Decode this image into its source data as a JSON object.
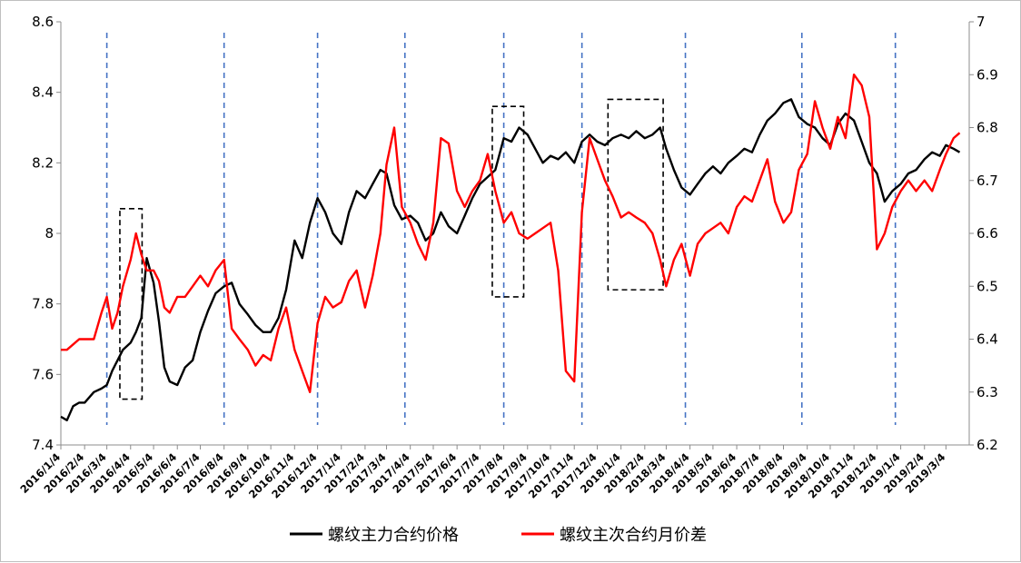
{
  "chart_data": {
    "type": "line",
    "title": "",
    "xlabel": "",
    "ylabel": "",
    "x_tick_labels": [
      "2016/1/4",
      "2016/2/4",
      "2016/3/4",
      "2016/4/4",
      "2016/5/4",
      "2016/6/4",
      "2016/7/4",
      "2016/8/4",
      "2016/9/4",
      "2016/10/4",
      "2016/11/4",
      "2016/12/4",
      "2017/1/4",
      "2017/2/4",
      "2017/3/4",
      "2017/4/4",
      "2017/5/4",
      "2017/6/4",
      "2017/7/4",
      "2017/8/4",
      "2017/9/4",
      "2017/10/4",
      "2017/11/4",
      "2017/12/4",
      "2018/1/4",
      "2018/2/4",
      "2018/3/4",
      "2018/4/4",
      "2018/5/4",
      "2018/6/4",
      "2018/7/4",
      "2018/8/4",
      "2018/9/4",
      "2018/10/4",
      "2018/11/4",
      "2018/12/4",
      "2019/1/4",
      "2019/2/4",
      "2019/3/4"
    ],
    "y_left": {
      "ylim": [
        7.4,
        8.6
      ],
      "ticks": [
        "7.4",
        "7.6",
        "7.8",
        "8",
        "8.2",
        "8.4",
        "8.6"
      ]
    },
    "y_right": {
      "ylim": [
        6.2,
        7.0
      ],
      "ticks": [
        "6.2",
        "6.3",
        "6.4",
        "6.5",
        "6.6",
        "6.7",
        "6.8",
        "6.9",
        "7"
      ]
    },
    "legend_position": "bottom",
    "series": [
      {
        "name": "螺纹主力合约价格",
        "axis": "left",
        "color": "#000000",
        "points": [
          [
            "2016/1/4",
            7.48
          ],
          [
            "2016/1/12",
            7.47
          ],
          [
            "2016/1/20",
            7.51
          ],
          [
            "2016/1/28",
            7.52
          ],
          [
            "2016/2/4",
            7.52
          ],
          [
            "2016/2/16",
            7.55
          ],
          [
            "2016/2/26",
            7.56
          ],
          [
            "2016/3/4",
            7.57
          ],
          [
            "2016/3/11",
            7.61
          ],
          [
            "2016/3/18",
            7.64
          ],
          [
            "2016/3/25",
            7.67
          ],
          [
            "2016/4/4",
            7.69
          ],
          [
            "2016/4/11",
            7.72
          ],
          [
            "2016/4/18",
            7.76
          ],
          [
            "2016/4/25",
            7.93
          ],
          [
            "2016/5/4",
            7.86
          ],
          [
            "2016/5/11",
            7.75
          ],
          [
            "2016/5/18",
            7.62
          ],
          [
            "2016/5/25",
            7.58
          ],
          [
            "2016/6/4",
            7.57
          ],
          [
            "2016/6/14",
            7.62
          ],
          [
            "2016/6/24",
            7.64
          ],
          [
            "2016/7/4",
            7.72
          ],
          [
            "2016/7/14",
            7.78
          ],
          [
            "2016/7/24",
            7.83
          ],
          [
            "2016/8/4",
            7.85
          ],
          [
            "2016/8/14",
            7.86
          ],
          [
            "2016/8/24",
            7.8
          ],
          [
            "2016/9/4",
            7.77
          ],
          [
            "2016/9/14",
            7.74
          ],
          [
            "2016/9/24",
            7.72
          ],
          [
            "2016/10/4",
            7.72
          ],
          [
            "2016/10/14",
            7.76
          ],
          [
            "2016/10/24",
            7.84
          ],
          [
            "2016/11/4",
            7.98
          ],
          [
            "2016/11/14",
            7.93
          ],
          [
            "2016/11/24",
            8.03
          ],
          [
            "2016/12/4",
            8.1
          ],
          [
            "2016/12/14",
            8.06
          ],
          [
            "2016/12/24",
            8.0
          ],
          [
            "2017/1/4",
            7.97
          ],
          [
            "2017/1/14",
            8.06
          ],
          [
            "2017/1/24",
            8.12
          ],
          [
            "2017/2/4",
            8.1
          ],
          [
            "2017/2/14",
            8.14
          ],
          [
            "2017/2/24",
            8.18
          ],
          [
            "2017/3/4",
            8.17
          ],
          [
            "2017/3/14",
            8.08
          ],
          [
            "2017/3/24",
            8.04
          ],
          [
            "2017/4/4",
            8.05
          ],
          [
            "2017/4/14",
            8.03
          ],
          [
            "2017/4/24",
            7.98
          ],
          [
            "2017/5/4",
            8.0
          ],
          [
            "2017/5/14",
            8.06
          ],
          [
            "2017/5/24",
            8.02
          ],
          [
            "2017/6/4",
            8.0
          ],
          [
            "2017/6/14",
            8.05
          ],
          [
            "2017/6/24",
            8.1
          ],
          [
            "2017/7/4",
            8.14
          ],
          [
            "2017/7/14",
            8.16
          ],
          [
            "2017/7/24",
            8.18
          ],
          [
            "2017/8/4",
            8.27
          ],
          [
            "2017/8/14",
            8.26
          ],
          [
            "2017/8/24",
            8.3
          ],
          [
            "2017/9/4",
            8.28
          ],
          [
            "2017/9/14",
            8.24
          ],
          [
            "2017/9/24",
            8.2
          ],
          [
            "2017/10/4",
            8.22
          ],
          [
            "2017/10/14",
            8.21
          ],
          [
            "2017/10/24",
            8.23
          ],
          [
            "2017/11/4",
            8.2
          ],
          [
            "2017/11/14",
            8.26
          ],
          [
            "2017/11/24",
            8.28
          ],
          [
            "2017/12/4",
            8.26
          ],
          [
            "2017/12/14",
            8.25
          ],
          [
            "2017/12/24",
            8.27
          ],
          [
            "2018/1/4",
            8.28
          ],
          [
            "2018/1/14",
            8.27
          ],
          [
            "2018/1/24",
            8.29
          ],
          [
            "2018/2/4",
            8.27
          ],
          [
            "2018/2/14",
            8.28
          ],
          [
            "2018/2/24",
            8.3
          ],
          [
            "2018/3/4",
            8.24
          ],
          [
            "2018/3/14",
            8.18
          ],
          [
            "2018/3/24",
            8.13
          ],
          [
            "2018/4/4",
            8.11
          ],
          [
            "2018/4/14",
            8.14
          ],
          [
            "2018/4/24",
            8.17
          ],
          [
            "2018/5/4",
            8.19
          ],
          [
            "2018/5/14",
            8.17
          ],
          [
            "2018/5/24",
            8.2
          ],
          [
            "2018/6/4",
            8.22
          ],
          [
            "2018/6/14",
            8.24
          ],
          [
            "2018/6/24",
            8.23
          ],
          [
            "2018/7/4",
            8.28
          ],
          [
            "2018/7/14",
            8.32
          ],
          [
            "2018/7/24",
            8.34
          ],
          [
            "2018/8/4",
            8.37
          ],
          [
            "2018/8/14",
            8.38
          ],
          [
            "2018/8/24",
            8.33
          ],
          [
            "2018/9/4",
            8.31
          ],
          [
            "2018/9/14",
            8.3
          ],
          [
            "2018/9/24",
            8.27
          ],
          [
            "2018/10/4",
            8.25
          ],
          [
            "2018/10/14",
            8.31
          ],
          [
            "2018/10/24",
            8.34
          ],
          [
            "2018/11/4",
            8.32
          ],
          [
            "2018/11/14",
            8.26
          ],
          [
            "2018/11/24",
            8.2
          ],
          [
            "2018/12/4",
            8.17
          ],
          [
            "2018/12/14",
            8.09
          ],
          [
            "2018/12/24",
            8.12
          ],
          [
            "2019/1/4",
            8.14
          ],
          [
            "2019/1/14",
            8.17
          ],
          [
            "2019/1/24",
            8.18
          ],
          [
            "2019/2/4",
            8.21
          ],
          [
            "2019/2/14",
            8.23
          ],
          [
            "2019/2/24",
            8.22
          ],
          [
            "2019/3/4",
            8.25
          ],
          [
            "2019/3/14",
            8.24
          ],
          [
            "2019/3/22",
            8.23
          ]
        ]
      },
      {
        "name": "螺纹主次合约月价差",
        "axis": "right",
        "color": "#ff0000",
        "points": [
          [
            "2016/1/4",
            6.38
          ],
          [
            "2016/1/12",
            6.38
          ],
          [
            "2016/1/20",
            6.39
          ],
          [
            "2016/1/28",
            6.4
          ],
          [
            "2016/2/4",
            6.4
          ],
          [
            "2016/2/16",
            6.4
          ],
          [
            "2016/2/26",
            6.45
          ],
          [
            "2016/3/4",
            6.48
          ],
          [
            "2016/3/11",
            6.42
          ],
          [
            "2016/3/18",
            6.45
          ],
          [
            "2016/3/25",
            6.5
          ],
          [
            "2016/4/4",
            6.55
          ],
          [
            "2016/4/11",
            6.6
          ],
          [
            "2016/4/18",
            6.56
          ],
          [
            "2016/4/25",
            6.53
          ],
          [
            "2016/5/4",
            6.53
          ],
          [
            "2016/5/11",
            6.51
          ],
          [
            "2016/5/18",
            6.46
          ],
          [
            "2016/5/25",
            6.45
          ],
          [
            "2016/6/4",
            6.48
          ],
          [
            "2016/6/14",
            6.48
          ],
          [
            "2016/6/24",
            6.5
          ],
          [
            "2016/7/4",
            6.52
          ],
          [
            "2016/7/14",
            6.5
          ],
          [
            "2016/7/24",
            6.53
          ],
          [
            "2016/8/4",
            6.55
          ],
          [
            "2016/8/14",
            6.42
          ],
          [
            "2016/8/24",
            6.4
          ],
          [
            "2016/9/4",
            6.38
          ],
          [
            "2016/9/14",
            6.35
          ],
          [
            "2016/9/24",
            6.37
          ],
          [
            "2016/10/4",
            6.36
          ],
          [
            "2016/10/14",
            6.42
          ],
          [
            "2016/10/24",
            6.46
          ],
          [
            "2016/11/4",
            6.38
          ],
          [
            "2016/11/14",
            6.34
          ],
          [
            "2016/11/24",
            6.3
          ],
          [
            "2016/12/4",
            6.43
          ],
          [
            "2016/12/14",
            6.48
          ],
          [
            "2016/12/24",
            6.46
          ],
          [
            "2017/1/4",
            6.47
          ],
          [
            "2017/1/14",
            6.51
          ],
          [
            "2017/1/24",
            6.53
          ],
          [
            "2017/2/4",
            6.46
          ],
          [
            "2017/2/14",
            6.52
          ],
          [
            "2017/2/24",
            6.6
          ],
          [
            "2017/3/4",
            6.73
          ],
          [
            "2017/3/14",
            6.8
          ],
          [
            "2017/3/24",
            6.65
          ],
          [
            "2017/4/4",
            6.62
          ],
          [
            "2017/4/14",
            6.58
          ],
          [
            "2017/4/24",
            6.55
          ],
          [
            "2017/5/4",
            6.62
          ],
          [
            "2017/5/14",
            6.78
          ],
          [
            "2017/5/24",
            6.77
          ],
          [
            "2017/6/4",
            6.68
          ],
          [
            "2017/6/14",
            6.65
          ],
          [
            "2017/6/24",
            6.68
          ],
          [
            "2017/7/4",
            6.7
          ],
          [
            "2017/7/14",
            6.75
          ],
          [
            "2017/7/24",
            6.68
          ],
          [
            "2017/8/4",
            6.62
          ],
          [
            "2017/8/14",
            6.64
          ],
          [
            "2017/8/24",
            6.6
          ],
          [
            "2017/9/4",
            6.59
          ],
          [
            "2017/9/14",
            6.6
          ],
          [
            "2017/9/24",
            6.61
          ],
          [
            "2017/10/4",
            6.62
          ],
          [
            "2017/10/14",
            6.53
          ],
          [
            "2017/10/24",
            6.34
          ],
          [
            "2017/11/4",
            6.32
          ],
          [
            "2017/11/14",
            6.64
          ],
          [
            "2017/11/24",
            6.78
          ],
          [
            "2017/12/4",
            6.74
          ],
          [
            "2017/12/14",
            6.7
          ],
          [
            "2017/12/24",
            6.67
          ],
          [
            "2018/1/4",
            6.63
          ],
          [
            "2018/1/14",
            6.64
          ],
          [
            "2018/1/24",
            6.63
          ],
          [
            "2018/2/4",
            6.62
          ],
          [
            "2018/2/14",
            6.6
          ],
          [
            "2018/2/24",
            6.55
          ],
          [
            "2018/3/4",
            6.5
          ],
          [
            "2018/3/14",
            6.55
          ],
          [
            "2018/3/24",
            6.58
          ],
          [
            "2018/4/4",
            6.52
          ],
          [
            "2018/4/14",
            6.58
          ],
          [
            "2018/4/24",
            6.6
          ],
          [
            "2018/5/4",
            6.61
          ],
          [
            "2018/5/14",
            6.62
          ],
          [
            "2018/5/24",
            6.6
          ],
          [
            "2018/6/4",
            6.65
          ],
          [
            "2018/6/14",
            6.67
          ],
          [
            "2018/6/24",
            6.66
          ],
          [
            "2018/7/4",
            6.7
          ],
          [
            "2018/7/14",
            6.74
          ],
          [
            "2018/7/24",
            6.66
          ],
          [
            "2018/8/4",
            6.62
          ],
          [
            "2018/8/14",
            6.64
          ],
          [
            "2018/8/24",
            6.72
          ],
          [
            "2018/9/4",
            6.75
          ],
          [
            "2018/9/14",
            6.85
          ],
          [
            "2018/9/24",
            6.8
          ],
          [
            "2018/10/4",
            6.76
          ],
          [
            "2018/10/14",
            6.82
          ],
          [
            "2018/10/24",
            6.78
          ],
          [
            "2018/11/4",
            6.9
          ],
          [
            "2018/11/14",
            6.88
          ],
          [
            "2018/11/24",
            6.82
          ],
          [
            "2018/12/4",
            6.57
          ],
          [
            "2018/12/14",
            6.6
          ],
          [
            "2018/12/24",
            6.65
          ],
          [
            "2019/1/4",
            6.68
          ],
          [
            "2019/1/14",
            6.7
          ],
          [
            "2019/1/24",
            6.68
          ],
          [
            "2019/2/4",
            6.7
          ],
          [
            "2019/2/14",
            6.68
          ],
          [
            "2019/2/24",
            6.72
          ],
          [
            "2019/3/4",
            6.75
          ],
          [
            "2019/3/14",
            6.78
          ],
          [
            "2019/3/22",
            6.79
          ]
        ]
      }
    ],
    "reference_lines": [
      "2016/3/4",
      "2016/8/4",
      "2016/12/4",
      "2017/3/28",
      "2017/8/4",
      "2017/11/14",
      "2018/3/29",
      "2018/8/28",
      "2018/12/28"
    ],
    "highlight_boxes": [
      {
        "x_from": "2016/3/21",
        "x_to": "2016/4/19",
        "y_from": 7.53,
        "y_to": 8.07
      },
      {
        "x_from": "2017/7/20",
        "x_to": "2017/8/30",
        "y_from": 7.82,
        "y_to": 8.36
      },
      {
        "x_from": "2017/12/18",
        "x_to": "2018/2/28",
        "y_from": 7.84,
        "y_to": 8.38
      }
    ]
  }
}
